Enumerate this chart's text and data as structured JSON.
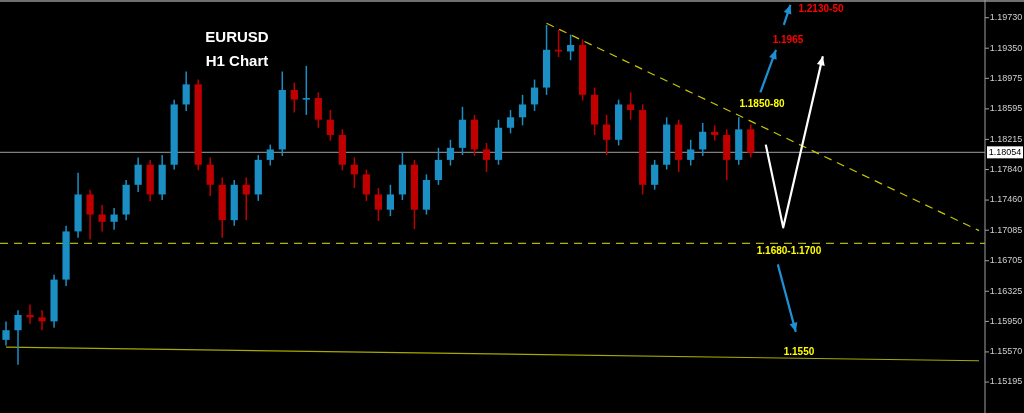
{
  "chart_data": {
    "type": "candlestick",
    "title": "EURUSD",
    "subtitle": "H1 Chart",
    "tick_labels": "y",
    "categories": [
      null,
      null,
      null,
      null,
      null,
      null,
      null,
      null,
      null,
      null,
      null,
      null,
      null,
      null,
      null,
      null,
      null,
      null,
      null,
      null,
      null,
      null,
      null,
      null,
      null,
      null,
      null,
      null,
      null,
      null,
      null,
      null,
      null,
      null,
      null,
      null,
      null,
      null,
      null,
      null,
      null,
      null,
      null,
      null,
      null,
      null,
      null,
      null,
      null,
      null,
      null,
      null,
      null,
      null,
      null,
      null,
      null,
      null,
      null,
      null,
      null,
      null,
      null,
      null,
      null,
      null,
      null,
      null,
      null,
      null,
      null,
      null,
      null,
      null,
      null,
      null,
      null,
      null,
      null,
      null,
      null,
      null
    ],
    "ylim": [
      1.1481,
      1.1995
    ],
    "yticks": [
      {
        "value": 1.1973,
        "label": "1.19730"
      },
      {
        "value": 1.1935,
        "label": "1.19350"
      },
      {
        "value": 1.18975,
        "label": "1.18975"
      },
      {
        "value": 1.18595,
        "label": "1.18595"
      },
      {
        "value": 1.18215,
        "label": "1.18215"
      },
      {
        "value": 1.1784,
        "label": "1.17840"
      },
      {
        "value": 1.1746,
        "label": "1.17460"
      },
      {
        "value": 1.17085,
        "label": "1.17085"
      },
      {
        "value": 1.16705,
        "label": "1.16705"
      },
      {
        "value": 1.16325,
        "label": "1.16325"
      },
      {
        "value": 1.1595,
        "label": "1.15950"
      },
      {
        "value": 1.1557,
        "label": "1.15570"
      },
      {
        "value": 1.15195,
        "label": "1.15195"
      }
    ],
    "ohlc": [
      [
        1.1572,
        1.1595,
        1.1565,
        1.1584
      ],
      [
        1.1584,
        1.1609,
        1.1541,
        1.1603
      ],
      [
        1.1603,
        1.1616,
        1.1592,
        1.16
      ],
      [
        1.16,
        1.1609,
        1.1584,
        1.1595
      ],
      [
        1.1595,
        1.1653,
        1.1587,
        1.1647
      ],
      [
        1.1647,
        1.1714,
        1.1639,
        1.1707
      ],
      [
        1.1707,
        1.178,
        1.1699,
        1.1753
      ],
      [
        1.1753,
        1.1759,
        1.1697,
        1.1728
      ],
      [
        1.1728,
        1.174,
        1.1707,
        1.1719
      ],
      [
        1.1719,
        1.1736,
        1.1709,
        1.1728
      ],
      [
        1.1728,
        1.1771,
        1.1721,
        1.1765
      ],
      [
        1.1765,
        1.1799,
        1.1756,
        1.179
      ],
      [
        1.179,
        1.1796,
        1.1745,
        1.1753
      ],
      [
        1.1753,
        1.1802,
        1.1746,
        1.179
      ],
      [
        1.179,
        1.1871,
        1.1784,
        1.1865
      ],
      [
        1.1865,
        1.1906,
        1.1857,
        1.189
      ],
      [
        1.189,
        1.1896,
        1.1783,
        1.179
      ],
      [
        1.179,
        1.1799,
        1.1751,
        1.1765
      ],
      [
        1.1765,
        1.1774,
        1.1699,
        1.1721
      ],
      [
        1.1721,
        1.1771,
        1.1714,
        1.1765
      ],
      [
        1.1765,
        1.1774,
        1.1721,
        1.1753
      ],
      [
        1.1753,
        1.1802,
        1.1745,
        1.1796
      ],
      [
        1.1796,
        1.1815,
        1.1789,
        1.1809
      ],
      [
        1.1809,
        1.1906,
        1.1801,
        1.1883
      ],
      [
        1.1883,
        1.1892,
        1.1855,
        1.1871
      ],
      [
        1.1871,
        1.1913,
        1.1852,
        1.1873
      ],
      [
        1.1873,
        1.188,
        1.1836,
        1.1846
      ],
      [
        1.1846,
        1.1858,
        1.182,
        1.1827
      ],
      [
        1.1827,
        1.1834,
        1.1783,
        1.179
      ],
      [
        1.179,
        1.1799,
        1.1761,
        1.1778
      ],
      [
        1.1778,
        1.1784,
        1.1745,
        1.1753
      ],
      [
        1.1753,
        1.1761,
        1.172,
        1.1734
      ],
      [
        1.1734,
        1.1765,
        1.1726,
        1.1753
      ],
      [
        1.1753,
        1.1806,
        1.1746,
        1.179
      ],
      [
        1.179,
        1.1796,
        1.171,
        1.1734
      ],
      [
        1.1734,
        1.1778,
        1.1728,
        1.1771
      ],
      [
        1.1771,
        1.1811,
        1.1765,
        1.1796
      ],
      [
        1.1796,
        1.1821,
        1.1789,
        1.1811
      ],
      [
        1.1811,
        1.1862,
        1.1802,
        1.1846
      ],
      [
        1.1846,
        1.1852,
        1.1801,
        1.1809
      ],
      [
        1.1809,
        1.1817,
        1.1781,
        1.1796
      ],
      [
        1.1796,
        1.1846,
        1.179,
        1.1836
      ],
      [
        1.1836,
        1.1858,
        1.1829,
        1.1849
      ],
      [
        1.1849,
        1.1877,
        1.1839,
        1.1865
      ],
      [
        1.1865,
        1.1896,
        1.1857,
        1.1886
      ],
      [
        1.1886,
        1.1964,
        1.1877,
        1.1933
      ],
      [
        1.1933,
        1.1958,
        1.1924,
        1.1931
      ],
      [
        1.1931,
        1.1952,
        1.192,
        1.1939
      ],
      [
        1.1939,
        1.1946,
        1.187,
        1.1877
      ],
      [
        1.1877,
        1.1886,
        1.1827,
        1.184
      ],
      [
        1.184,
        1.1852,
        1.1802,
        1.1821
      ],
      [
        1.1821,
        1.1871,
        1.1814,
        1.1865
      ],
      [
        1.1865,
        1.188,
        1.1846,
        1.1858
      ],
      [
        1.1858,
        1.1865,
        1.1753,
        1.1765
      ],
      [
        1.1765,
        1.1796,
        1.1759,
        1.179
      ],
      [
        1.179,
        1.1849,
        1.1784,
        1.184
      ],
      [
        1.184,
        1.1846,
        1.1781,
        1.1796
      ],
      [
        1.1796,
        1.1821,
        1.1789,
        1.1809
      ],
      [
        1.1809,
        1.1842,
        1.1801,
        1.1831
      ],
      [
        1.1831,
        1.1839,
        1.182,
        1.1827
      ],
      [
        1.1827,
        1.1834,
        1.1771,
        1.1796
      ],
      [
        1.1796,
        1.1849,
        1.179,
        1.1834
      ],
      [
        1.1834,
        1.184,
        1.1799,
        1.1805
      ],
      null,
      null,
      null,
      null,
      null,
      null,
      null,
      null,
      null,
      null,
      null,
      null,
      null,
      null,
      null,
      null,
      null,
      null,
      null
    ],
    "colors": [
      "#1b8fc4",
      "#1b8fc4",
      "#c00000",
      "#c00000",
      "#1b8fc4",
      "#1b8fc4",
      "#1b8fc4",
      "#c00000",
      "#c00000",
      "#1b8fc4",
      "#1b8fc4",
      "#1b8fc4",
      "#c00000",
      "#1b8fc4",
      "#1b8fc4",
      "#1b8fc4",
      "#c00000",
      "#c00000",
      "#c00000",
      "#1b8fc4",
      "#c00000",
      "#1b8fc4",
      "#1b8fc4",
      "#1b8fc4",
      "#c00000",
      "#1b8fc4",
      "#c00000",
      "#c00000",
      "#c00000",
      "#c00000",
      "#c00000",
      "#c00000",
      "#1b8fc4",
      "#1b8fc4",
      "#c00000",
      "#1b8fc4",
      "#1b8fc4",
      "#1b8fc4",
      "#1b8fc4",
      "#c00000",
      "#c00000",
      "#1b8fc4",
      "#1b8fc4",
      "#1b8fc4",
      "#1b8fc4",
      "#1b8fc4",
      "#c00000",
      "#1b8fc4",
      "#c00000",
      "#c00000",
      "#c00000",
      "#1b8fc4",
      "#c00000",
      "#c00000",
      "#1b8fc4",
      "#1b8fc4",
      "#c00000",
      "#1b8fc4",
      "#1b8fc4",
      "#c00000",
      "#c00000",
      "#1b8fc4",
      "#c00000",
      null,
      null,
      null,
      null,
      null,
      null,
      null,
      null,
      null,
      null,
      null,
      null,
      null,
      null,
      null,
      null,
      null,
      null,
      null
    ],
    "series": [
      {
        "type": "line",
        "values": [
          null,
          null,
          null,
          null,
          null,
          null,
          null,
          null,
          null,
          null,
          null,
          null,
          null,
          null,
          null,
          null,
          null,
          null,
          null,
          null,
          null,
          null,
          null,
          null,
          null,
          null,
          null,
          null,
          null,
          null,
          null,
          null,
          null,
          null,
          null,
          null,
          null,
          null,
          null,
          null,
          null,
          null,
          null,
          null,
          null,
          1.1966,
          null,
          null,
          null,
          null,
          null,
          null,
          null,
          null,
          null,
          null,
          null,
          null,
          null,
          null,
          null,
          null,
          null,
          null,
          null,
          null,
          null,
          null,
          null,
          null,
          null,
          null,
          null,
          null,
          null,
          null,
          null,
          null,
          null,
          null,
          null,
          1.1708
        ],
        "color": "#c8c800",
        "line_style": "dashed"
      },
      {
        "type": "line",
        "values": [
          1.1563,
          null,
          null,
          null,
          null,
          null,
          null,
          null,
          null,
          null,
          null,
          null,
          null,
          null,
          null,
          null,
          null,
          null,
          null,
          null,
          null,
          null,
          null,
          null,
          null,
          null,
          null,
          null,
          null,
          null,
          null,
          null,
          null,
          null,
          null,
          null,
          null,
          null,
          null,
          null,
          null,
          null,
          null,
          null,
          null,
          null,
          null,
          null,
          null,
          null,
          null,
          null,
          null,
          null,
          null,
          null,
          null,
          null,
          null,
          null,
          null,
          null,
          null,
          null,
          null,
          null,
          null,
          null,
          null,
          null,
          null,
          null,
          null,
          null,
          null,
          null,
          null,
          null,
          null,
          null,
          null,
          1.1546
        ],
        "color": "#a8a800",
        "line_style": "solid"
      }
    ],
    "ref_lines": [
      {
        "axis": "y",
        "value": 1.18054,
        "label": "1.18054",
        "color": "#808080",
        "line_style": "solid"
      },
      {
        "axis": "y",
        "value": 1.1692,
        "color": "#b4b400",
        "line_style": "dashed"
      }
    ],
    "annotations": [
      "1.2130-50",
      "1.1965",
      "1.1850-80",
      "1.1680-1.1700",
      "1.1550"
    ]
  }
}
